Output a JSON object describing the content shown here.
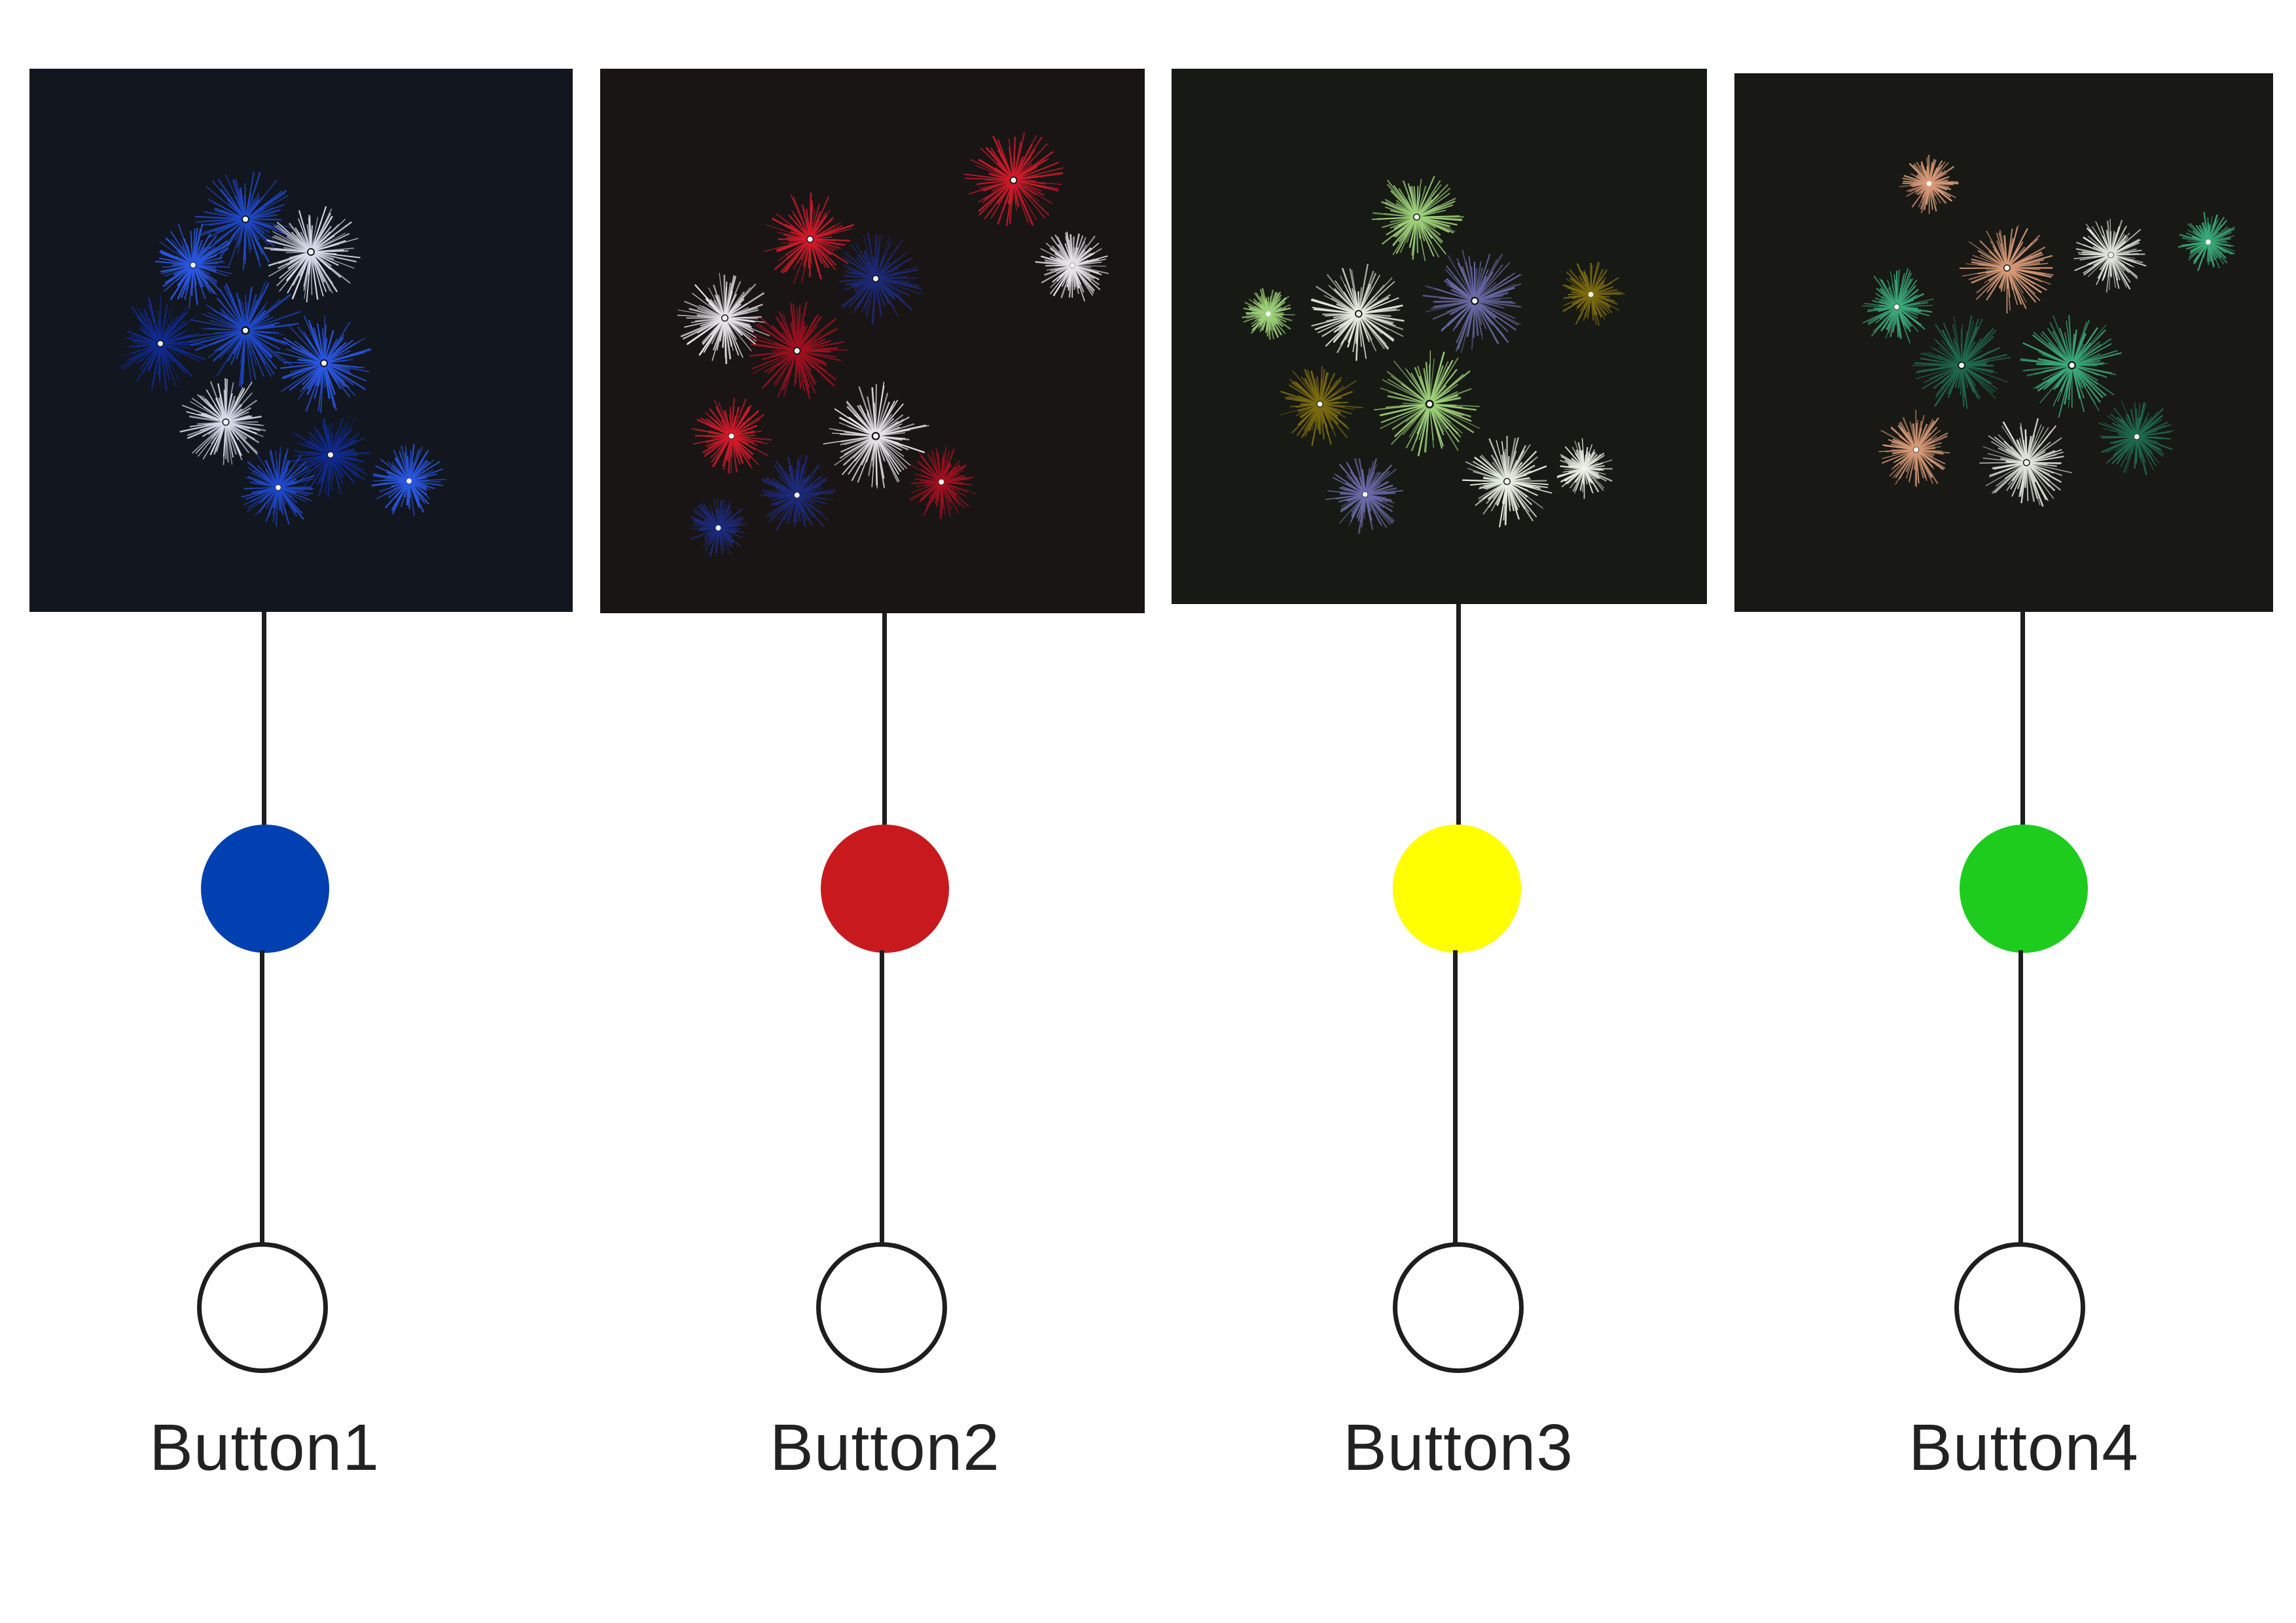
{
  "buttons": [
    {
      "label": "Button1",
      "dot_color": "#0040b0",
      "panel_bg": "#12161f",
      "burst_colors": [
        "#1f48c8",
        "#2a56e0",
        "#d8dce8",
        "#102a90"
      ]
    },
    {
      "label": "Button2",
      "dot_color": "#c81a1e",
      "panel_bg": "#1a1515",
      "burst_colors": [
        "#d21a2a",
        "#e8e4e8",
        "#1c2a7a",
        "#a01020"
      ]
    },
    {
      "label": "Button3",
      "dot_color": "#ffff00",
      "panel_bg": "#171a14",
      "burst_colors": [
        "#9ed07a",
        "#e6ece0",
        "#6a6aa8",
        "#7a6a10"
      ]
    },
    {
      "label": "Button4",
      "dot_color": "#1ecc1e",
      "panel_bg": "#181814",
      "burst_colors": [
        "#3aa878",
        "#d89a78",
        "#e0e4dc",
        "#1f6a50"
      ]
    }
  ]
}
